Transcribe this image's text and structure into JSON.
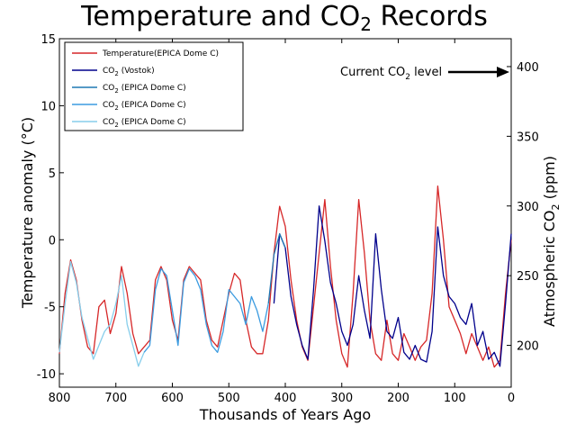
{
  "chart_data": {
    "type": "line",
    "title": "Temperature and CO",
    "title_sub": "2",
    "title_tail": " Records",
    "xlabel": "Thousands of Years Ago",
    "ylabel_left": "Temperature anomaly (°C)",
    "ylabel_right": "Atmospheric CO",
    "ylabel_right_sub": "2",
    "ylabel_right_tail": " (ppm)",
    "xlim": [
      800,
      0
    ],
    "ylim_left": [
      -11,
      15
    ],
    "ylim_right": [
      170,
      420
    ],
    "x_ticks": [
      "800",
      "700",
      "600",
      "500",
      "400",
      "300",
      "200",
      "100",
      "0"
    ],
    "y_ticks_left": [
      "-10",
      "-5",
      "0",
      "5",
      "10",
      "15"
    ],
    "y_ticks_right": [
      "200",
      "250",
      "300",
      "350",
      "400"
    ],
    "annotation": {
      "text": "Current CO",
      "sub": "2",
      "tail": " level",
      "value_ppm": 395
    },
    "legend_position": "top-left",
    "series": [
      {
        "name": "Temperature",
        "name_tail": "(EPICA Dome C)",
        "axis": "left",
        "color": "#d62728",
        "x": [
          800,
          790,
          780,
          770,
          760,
          750,
          740,
          730,
          720,
          710,
          700,
          690,
          680,
          670,
          660,
          650,
          640,
          630,
          620,
          610,
          600,
          590,
          580,
          570,
          560,
          550,
          540,
          530,
          520,
          510,
          500,
          490,
          480,
          470,
          460,
          450,
          440,
          430,
          420,
          410,
          400,
          390,
          380,
          370,
          360,
          350,
          340,
          330,
          320,
          310,
          300,
          290,
          280,
          270,
          260,
          250,
          240,
          230,
          220,
          210,
          200,
          190,
          180,
          170,
          160,
          150,
          140,
          130,
          120,
          110,
          100,
          90,
          80,
          70,
          60,
          50,
          40,
          30,
          20,
          10,
          0
        ],
        "values": [
          -8.5,
          -4,
          -1.5,
          -3,
          -6,
          -8,
          -8.5,
          -5,
          -4.5,
          -7,
          -5.5,
          -2,
          -4,
          -7,
          -8.5,
          -8,
          -7.5,
          -3,
          -2,
          -3,
          -6,
          -7.5,
          -3,
          -2,
          -2.5,
          -3,
          -6,
          -7.5,
          -8,
          -6,
          -4,
          -2.5,
          -3,
          -6,
          -8,
          -8.5,
          -8.5,
          -6,
          -1,
          2.5,
          1,
          -3,
          -6,
          -8,
          -9,
          -5,
          -1,
          3,
          -2,
          -6,
          -8.5,
          -9.5,
          -4,
          3,
          -1,
          -6,
          -8.5,
          -9,
          -6,
          -8.5,
          -9,
          -7,
          -8,
          -9,
          -8,
          -7.5,
          -4,
          4,
          0,
          -5,
          -6,
          -7,
          -8.5,
          -7,
          -8,
          -9,
          -8,
          -9.5,
          -9,
          -4,
          0
        ]
      },
      {
        "name": "CO",
        "name_sub": "2",
        "name_tail": " (Vostok)",
        "axis": "right",
        "color": "#00008b",
        "x": [
          420,
          410,
          400,
          390,
          380,
          370,
          360,
          350,
          340,
          330,
          320,
          310,
          300,
          290,
          280,
          270,
          260,
          250,
          240,
          230,
          220,
          210,
          200,
          190,
          180,
          170,
          160,
          150,
          140,
          130,
          120,
          110,
          100,
          90,
          80,
          70,
          60,
          50,
          40,
          30,
          20,
          10,
          0
        ],
        "values": [
          230,
          280,
          270,
          235,
          215,
          200,
          190,
          240,
          300,
          275,
          245,
          230,
          210,
          200,
          215,
          250,
          225,
          205,
          280,
          240,
          210,
          205,
          220,
          195,
          190,
          200,
          190,
          188,
          210,
          285,
          250,
          235,
          230,
          220,
          215,
          230,
          200,
          210,
          190,
          195,
          185,
          230,
          280
        ]
      },
      {
        "name": "CO",
        "name_sub": "2",
        "name_tail": " (EPICA Dome C)",
        "axis": "right",
        "color": "#1f78b4",
        "x": [
          430,
          420,
          410,
          400
        ],
        "values": [
          230,
          265,
          280,
          270
        ]
      },
      {
        "name": "CO",
        "name_sub": "2",
        "name_tail": " (EPICA Dome C)",
        "axis": "right",
        "color": "#3b9be0",
        "x": [
          650,
          640,
          630,
          620,
          610,
          600,
          590,
          580,
          570,
          560,
          550,
          540,
          530,
          520,
          510,
          500,
          490,
          480,
          470,
          460,
          450,
          440,
          430
        ],
        "values": [
          195,
          200,
          240,
          255,
          250,
          225,
          200,
          245,
          255,
          250,
          240,
          215,
          200,
          195,
          210,
          240,
          235,
          230,
          215,
          235,
          225,
          210,
          230
        ]
      },
      {
        "name": "CO",
        "name_sub": "2",
        "name_tail": " (EPICA Dome C)",
        "axis": "right",
        "color": "#87ceeb",
        "x": [
          800,
          790,
          780,
          770,
          760,
          750,
          740,
          730,
          720,
          710,
          700,
          690,
          680,
          670,
          660,
          650
        ],
        "values": [
          195,
          230,
          260,
          245,
          220,
          205,
          190,
          200,
          210,
          215,
          230,
          250,
          215,
          200,
          185,
          195
        ]
      }
    ]
  }
}
